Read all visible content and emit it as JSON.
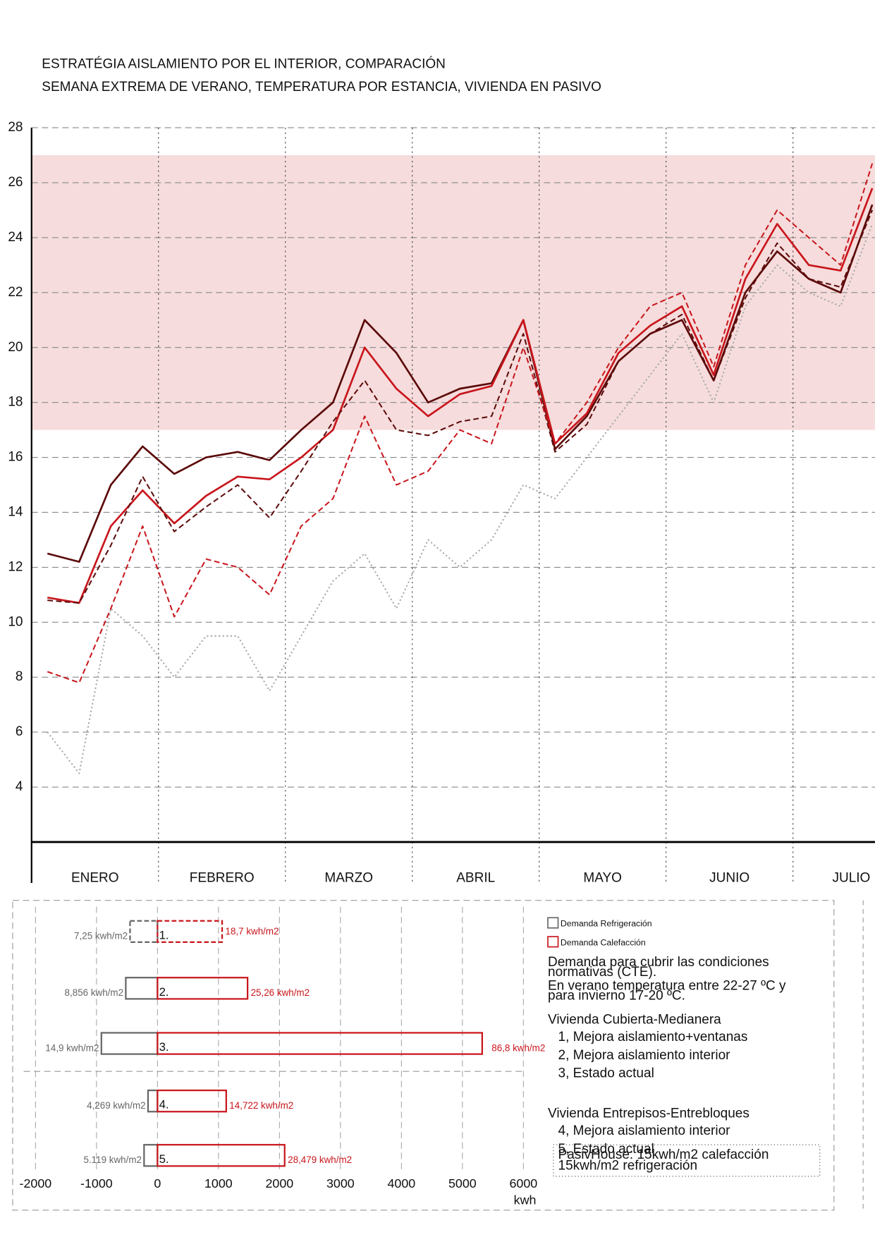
{
  "chart_data": [
    {
      "type": "line",
      "title": "ESTRATÉGIA AISLAMIENTO POR EL INTERIOR, COMPARACIÓN",
      "subtitle": "SEMANA EXTREMA DE VERANO, TEMPERATURA POR ESTANCIA, VIVIENDA EN PASIVO",
      "months": [
        "ENERO",
        "FEBRERO",
        "MARZO",
        "ABRIL",
        "MAYO",
        "JUNIO",
        "JULIO"
      ],
      "ylim": [
        2,
        28
      ],
      "yticks": [
        4,
        6,
        8,
        10,
        12,
        14,
        16,
        18,
        20,
        22,
        24,
        26,
        28
      ],
      "grid": true,
      "comfort_band": [
        17,
        27
      ],
      "comfort_color": "#f6dcdc",
      "series": [
        {
          "color": "#5c0a0a",
          "dash": "solid",
          "values": [
            12.5,
            12.2,
            15.0,
            16.4,
            15.4,
            16.0,
            16.2,
            15.9,
            17.0,
            18.0,
            21.0,
            19.8,
            18.0,
            18.5,
            18.7,
            21.0,
            16.3,
            17.5,
            19.5,
            20.5,
            21.0,
            18.8,
            22.0,
            23.5,
            22.5,
            22.0,
            25.2
          ]
        },
        {
          "color": "#c8161c",
          "dash": "solid",
          "values": [
            10.9,
            10.7,
            13.5,
            14.8,
            13.6,
            14.6,
            15.3,
            15.2,
            16.0,
            17.0,
            20.0,
            18.5,
            17.5,
            18.3,
            18.6,
            21.0,
            16.5,
            17.6,
            19.8,
            20.8,
            21.5,
            19.0,
            22.5,
            24.5,
            23.0,
            22.8,
            25.8
          ]
        },
        {
          "color": "#5c0a0a",
          "dash": "dashed",
          "values": [
            10.8,
            10.7,
            12.8,
            15.3,
            13.3,
            14.2,
            15.0,
            13.8,
            15.5,
            17.3,
            18.8,
            17.0,
            16.8,
            17.3,
            17.5,
            20.5,
            16.2,
            17.2,
            19.5,
            20.5,
            21.2,
            18.8,
            21.8,
            23.8,
            22.5,
            22.2,
            25.0
          ]
        },
        {
          "color": "#c8161c",
          "dash": "dashed",
          "values": [
            8.2,
            7.8,
            10.5,
            13.5,
            10.2,
            12.3,
            12.0,
            11.0,
            13.5,
            14.5,
            17.5,
            15.0,
            15.5,
            17.0,
            16.5,
            20.0,
            16.5,
            18.0,
            20.0,
            21.5,
            22.0,
            19.3,
            23.0,
            25.0,
            24.0,
            23.0,
            26.7
          ]
        },
        {
          "color": "#aaaaaa",
          "dash": "dotted",
          "values": [
            6.0,
            4.5,
            10.5,
            9.5,
            8.0,
            9.5,
            9.5,
            7.5,
            9.5,
            11.5,
            12.5,
            10.5,
            13.0,
            12.0,
            13.0,
            15.0,
            14.5,
            16.0,
            17.5,
            19.0,
            20.5,
            18.0,
            21.5,
            23.0,
            22.0,
            21.5,
            24.5
          ]
        }
      ]
    },
    {
      "type": "barh",
      "categories": [
        "1.",
        "2.",
        "3.",
        "4.",
        "5."
      ],
      "xlim": [
        -2000,
        6000
      ],
      "xticks": [
        -2000,
        -1000,
        0,
        1000,
        2000,
        3000,
        4000,
        5000,
        6000
      ],
      "xlabel": "kwh",
      "grid": true,
      "series": [
        {
          "name": "Demanda Refrigeración",
          "color": "#666666",
          "values": [
            -450,
            -520,
            -920,
            -155,
            -220
          ],
          "notes": [
            "7,25 kwh/m2",
            "8,856 kwh/m2",
            "14,9 kwh/m2",
            "4,269 kwh/m2",
            "5.119 kwh/m2"
          ]
        },
        {
          "name": "Demanda Calefacción",
          "color": "#c8161c",
          "values": [
            1060,
            1477,
            5324,
            1127,
            2085
          ],
          "notes": [
            "18,7 kwh/m2",
            "25,26 kwh/m2",
            "86,8 kwh/m2",
            "14,722 kwh/m2",
            "28,479 kwh/m2"
          ]
        }
      ],
      "description": [
        "Demanda  para cubrir las condiciones",
        "normativas (CTE).",
        "En verano temperatura entre 22-27 ºC y",
        "para invierno 17-20 ºC."
      ],
      "groups": [
        {
          "title": "Vivienda Cubierta-Medianera",
          "items": [
            "1, Mejora aislamiento+ventanas",
            "2, Mejora aislamiento interior",
            "3, Estado actual"
          ]
        },
        {
          "title": "Vivienda Entrepisos-Entrebloques",
          "items": [
            "4, Mejora aislamiento interior",
            "5, Estado actual"
          ]
        }
      ],
      "reference": [
        "PasivHouse: 15kwh/m2 calefacción",
        "15kwh/m2 refrigeración"
      ]
    }
  ]
}
